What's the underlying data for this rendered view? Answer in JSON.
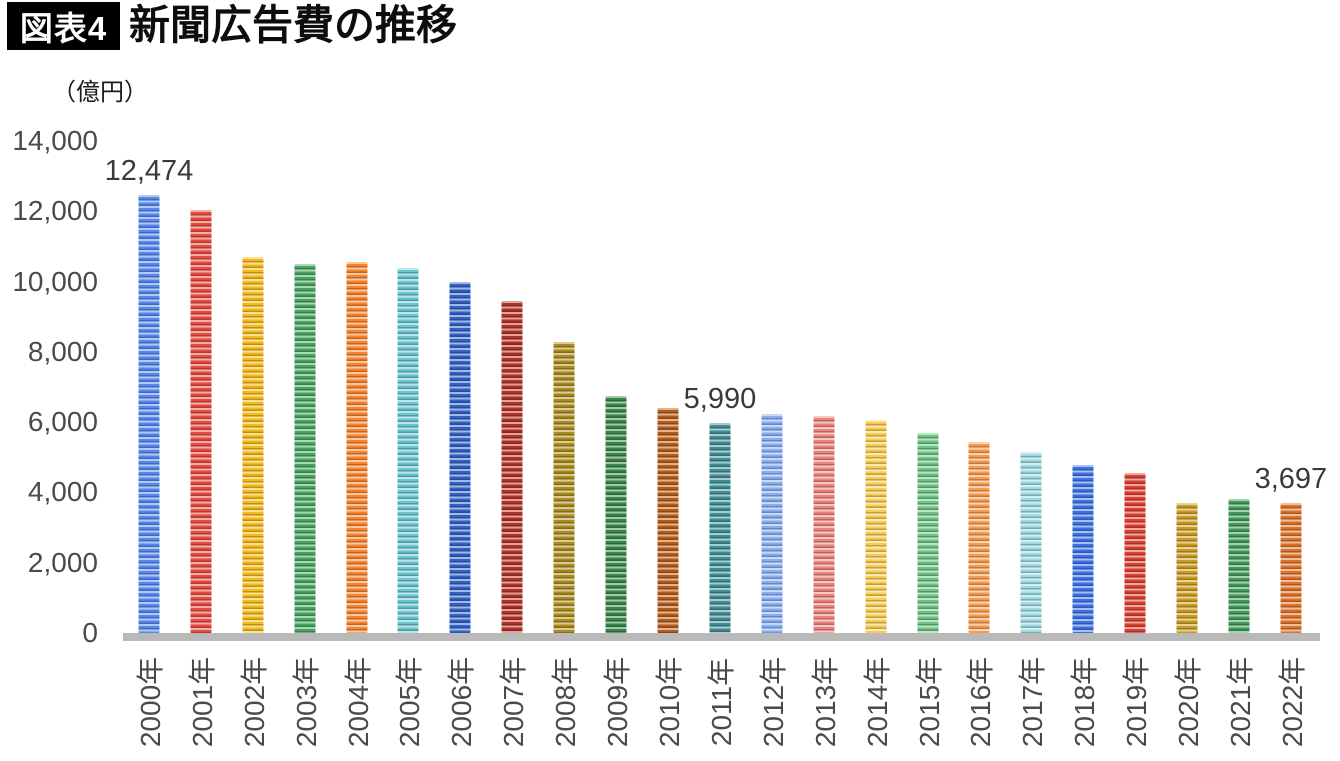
{
  "header": {
    "figure_label": "図表4",
    "title": "新聞広告費の推移"
  },
  "chart_data": {
    "type": "bar",
    "title": "新聞広告費の推移",
    "xlabel": "",
    "ylabel": "（億円）",
    "ylim": [
      0,
      14000
    ],
    "grid": false,
    "legend": false,
    "y_ticks": [
      {
        "value": 0,
        "label": "0"
      },
      {
        "value": 2000,
        "label": "2,000"
      },
      {
        "value": 4000,
        "label": "4,000"
      },
      {
        "value": 6000,
        "label": "6,000"
      },
      {
        "value": 8000,
        "label": "8,000"
      },
      {
        "value": 10000,
        "label": "10,000"
      },
      {
        "value": 12000,
        "label": "12,000"
      },
      {
        "value": 14000,
        "label": "14,000"
      }
    ],
    "categories": [
      "2000年",
      "2001年",
      "2002年",
      "2003年",
      "2004年",
      "2005年",
      "2006年",
      "2007年",
      "2008年",
      "2009年",
      "2010年",
      "2011年",
      "2012年",
      "2013年",
      "2014年",
      "2015年",
      "2016年",
      "2017年",
      "2018年",
      "2019年",
      "2020年",
      "2021年",
      "2022年"
    ],
    "values": [
      12474,
      12027,
      10707,
      10500,
      10559,
      10377,
      9986,
      9462,
      8276,
      6739,
      6396,
      5990,
      6242,
      6170,
      6057,
      5679,
      5431,
      5147,
      4784,
      4547,
      3688,
      3815,
      3697
    ],
    "bar_colors": [
      "#5588EE",
      "#E74A3E",
      "#F6B918",
      "#46A45F",
      "#F8842D",
      "#69C5CE",
      "#3061C6",
      "#B23227",
      "#AA8C1E",
      "#378549",
      "#B45C17",
      "#3D8E97",
      "#87ADF2",
      "#EE837B",
      "#F9CB52",
      "#6DC285",
      "#F89B4F",
      "#9EDADF",
      "#3A72E6",
      "#DD3E30",
      "#CB9A20",
      "#3F9A56",
      "#DE7226"
    ],
    "data_labels": [
      {
        "index": 0,
        "text": "12,474"
      },
      {
        "index": 11,
        "text": "5,990"
      },
      {
        "index": 22,
        "text": "3,697"
      }
    ]
  },
  "colors": {
    "axis_line": "#b9b9b9",
    "tick_text": "#4a4a4a",
    "data_label_text": "#3a3a3a",
    "figure_label_bg": "#000000",
    "figure_label_text": "#ffffff",
    "title_text": "#0d0d0d"
  }
}
